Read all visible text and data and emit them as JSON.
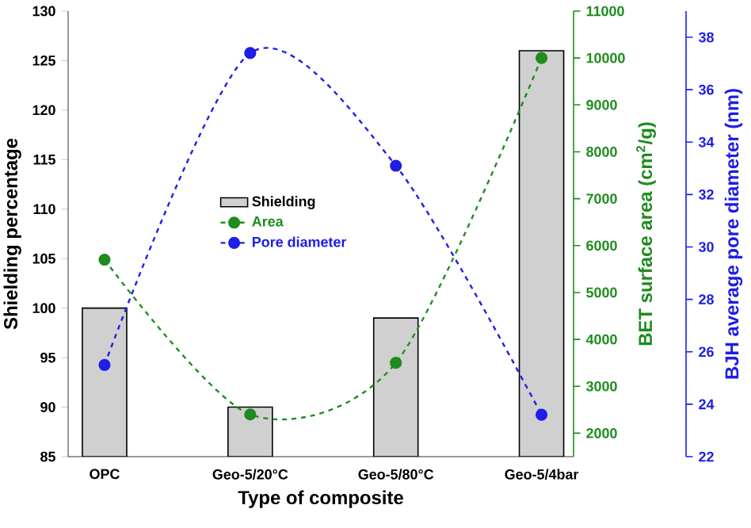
{
  "chart_data": {
    "type": "bar",
    "xlabel": "Type of composite",
    "ylabel": "Shielding percentage",
    "y2label": "BET surface area (cm$^{2}$/g)",
    "y3label": "BJH average pore diameter (nm)",
    "categories": [
      "OPC",
      "Geo-5/20°C",
      "Geo-5/80°C",
      "Geo-5/4bar"
    ],
    "series": [
      {
        "name": "Shielding",
        "color": "#d0d0d0",
        "values": [
          100,
          90,
          99,
          126
        ]
      },
      {
        "name": "Area",
        "type": "line",
        "axis": "y2",
        "color": "#1e8c1e",
        "marker": "circle",
        "line_style": "dashed",
        "values": [
          5700,
          2400,
          3500,
          10000
        ]
      },
      {
        "name": "Pore diameter",
        "type": "line",
        "axis": "y3",
        "color": "#1e1ee6",
        "marker": "circle",
        "line_style": "dashed",
        "values": [
          25.5,
          37.4,
          33.1,
          23.6
        ]
      }
    ],
    "ylim": [
      85,
      130
    ],
    "yticks": [
      85,
      90,
      95,
      100,
      105,
      110,
      115,
      120,
      125,
      130
    ],
    "y2lim": [
      1500,
      11000
    ],
    "y2ticks": [
      2000,
      3000,
      4000,
      5000,
      6000,
      7000,
      8000,
      9000,
      10000,
      11000
    ],
    "y3lim": [
      22,
      39
    ],
    "y3ticks": [
      22,
      24,
      26,
      28,
      30,
      32,
      34,
      36,
      38
    ],
    "legend": "center"
  }
}
